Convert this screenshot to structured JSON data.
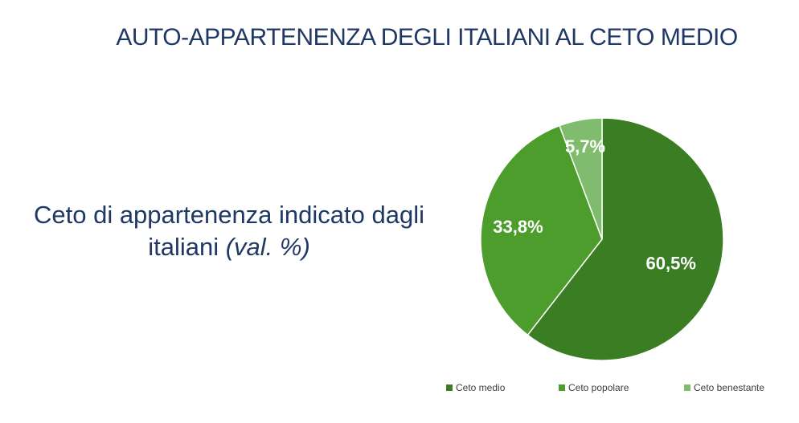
{
  "slide": {
    "title": "AUTO-APPARTENENZA DEGLI ITALIANI AL CETO MEDIO",
    "subtitle_main": "Ceto di appartenenza indicato dagli italiani",
    "subtitle_unit": "(val. %)"
  },
  "chart_data": {
    "type": "pie",
    "categories": [
      "Ceto medio",
      "Ceto popolare",
      "Ceto benestante"
    ],
    "values": [
      60.5,
      33.8,
      5.7
    ],
    "data_labels": [
      "60,5%",
      "33,8%",
      "5,7%"
    ],
    "colors": [
      "#3a7d23",
      "#4c9d2b",
      "#7fbc6e"
    ],
    "legend_position": "bottom",
    "start_angle": "12 o'clock, clockwise"
  }
}
